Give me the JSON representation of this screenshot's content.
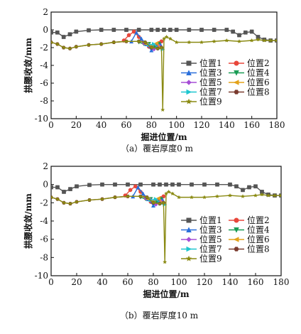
{
  "chart_data": [
    {
      "type": "line",
      "caption": "（a）覆岩厚度0 m",
      "xlabel": "掘进位置/m",
      "ylabel": "拱腰收敛/mm",
      "xlim": [
        0,
        180
      ],
      "ylim": [
        -10,
        2
      ],
      "xticks": [
        0,
        20,
        40,
        60,
        80,
        100,
        120,
        140,
        160,
        180
      ],
      "yticks": [
        2,
        0,
        -2,
        -4,
        -6,
        -8,
        -10
      ],
      "legend_placement": "right, inside plot",
      "series": [
        {
          "name": "位置1",
          "color": "#555555",
          "marker": "square",
          "x": [
            0,
            5,
            10,
            15,
            20,
            30,
            40,
            50,
            60,
            70,
            80,
            85,
            90,
            95,
            100,
            110,
            120,
            130,
            140,
            145,
            150,
            155,
            160,
            165,
            170,
            175,
            180
          ],
          "y": [
            -0.3,
            -0.3,
            -0.8,
            -0.5,
            -0.2,
            -0.05,
            0,
            0,
            0,
            0,
            0,
            0,
            0,
            0,
            0,
            0,
            0,
            0,
            0,
            -0.2,
            -0.6,
            -0.3,
            -0.2,
            -0.8,
            -1.1,
            -1.2,
            -1.2
          ]
        },
        {
          "name": "位置2",
          "color": "#e8473b",
          "marker": "circle",
          "x": [
            58,
            62,
            66,
            70,
            74,
            78,
            82,
            86,
            88
          ],
          "y": [
            -1.2,
            -0.6,
            -0.2,
            -0.8,
            -1.5,
            -1.9,
            -1.8,
            -1.5,
            -1.3
          ]
        },
        {
          "name": "位置3",
          "color": "#2a6fdb",
          "marker": "triangle-up",
          "x": [
            64,
            68,
            72,
            76,
            80,
            84,
            87
          ],
          "y": [
            -1.3,
            -0.3,
            -1.0,
            -1.6,
            -2.3,
            -1.9,
            -1.6
          ]
        },
        {
          "name": "位置4",
          "color": "#1a9c55",
          "marker": "triangle-down",
          "x": [
            70,
            74,
            78,
            82,
            86
          ],
          "y": [
            -1.4,
            -1.6,
            -1.6,
            -2.0,
            -1.6
          ]
        },
        {
          "name": "位置5",
          "color": "#a64fd6",
          "marker": "diamond",
          "x": [
            74,
            78,
            82,
            86
          ],
          "y": [
            -1.5,
            -1.7,
            -2.2,
            -1.8
          ]
        },
        {
          "name": "位置6",
          "color": "#e3a21a",
          "marker": "triangle-left",
          "x": [
            76,
            80,
            84,
            87
          ],
          "y": [
            -1.6,
            -1.8,
            -1.5,
            -2.0
          ]
        },
        {
          "name": "位置7",
          "color": "#1ec6cf",
          "marker": "triangle-right",
          "x": [
            78,
            82,
            86,
            89
          ],
          "y": [
            -1.7,
            -1.6,
            -2.1,
            -2.2
          ]
        },
        {
          "name": "位置8",
          "color": "#7a3b2e",
          "marker": "hexagon",
          "x": [
            0,
            5,
            10,
            15,
            20,
            30,
            40,
            50,
            60,
            70,
            75,
            80,
            85,
            88
          ],
          "y": [
            -1.4,
            -1.6,
            -2.0,
            -2.1,
            -1.9,
            -1.7,
            -1.6,
            -1.4,
            -1.3,
            -1.3,
            -1.4,
            -2.0,
            -2.1,
            -2.0
          ]
        },
        {
          "name": "位置9",
          "color": "#8a8a12",
          "marker": "star",
          "x": [
            0,
            5,
            10,
            15,
            20,
            30,
            40,
            50,
            60,
            70,
            75,
            80,
            85,
            88,
            89,
            90,
            92,
            95,
            100,
            110,
            120,
            130,
            140,
            150,
            160,
            165,
            170,
            175,
            180
          ],
          "y": [
            -1.4,
            -1.6,
            -2.0,
            -2.1,
            -1.9,
            -1.7,
            -1.6,
            -1.4,
            -1.3,
            -1.3,
            -1.4,
            -2.0,
            -2.1,
            -2.0,
            -9.0,
            -1.0,
            -0.8,
            -1.0,
            -1.4,
            -1.4,
            -1.4,
            -1.3,
            -1.2,
            -1.3,
            -1.2,
            -1.1,
            -1.2,
            -1.2,
            -1.2
          ]
        }
      ]
    },
    {
      "type": "line",
      "caption": "（b）覆岩厚度10 m",
      "xlabel": "掘进位置/m",
      "ylabel": "拱腰收敛/mm",
      "xlim": [
        0,
        180
      ],
      "ylim": [
        -10,
        2
      ],
      "xticks": [
        0,
        20,
        40,
        60,
        80,
        100,
        120,
        140,
        160,
        180
      ],
      "yticks": [
        2,
        0,
        -2,
        -4,
        -6,
        -8,
        -10
      ],
      "legend_placement": "right, inside plot",
      "series": [
        {
          "name": "位置1",
          "color": "#555555",
          "marker": "square",
          "x": [
            0,
            5,
            10,
            15,
            20,
            30,
            40,
            50,
            60,
            70,
            80,
            85,
            90,
            95,
            100,
            110,
            120,
            130,
            140,
            145,
            150,
            155,
            160,
            165,
            170,
            175,
            180
          ],
          "y": [
            -0.3,
            -0.3,
            -0.8,
            -0.5,
            -0.2,
            -0.05,
            0,
            0,
            0,
            0,
            0,
            0,
            0,
            0,
            0,
            0,
            0,
            0,
            0,
            -0.2,
            -0.6,
            -0.3,
            -0.2,
            -0.8,
            -1.1,
            -1.2,
            -1.2
          ]
        },
        {
          "name": "位置2",
          "color": "#e8473b",
          "marker": "circle",
          "x": [
            58,
            62,
            66,
            70,
            74,
            78,
            82,
            86,
            88
          ],
          "y": [
            -1.2,
            -0.6,
            -0.2,
            -0.8,
            -1.5,
            -1.9,
            -1.8,
            -1.5,
            -1.3
          ]
        },
        {
          "name": "位置3",
          "color": "#2a6fdb",
          "marker": "triangle-up",
          "x": [
            64,
            68,
            72,
            76,
            80,
            84,
            87
          ],
          "y": [
            -1.3,
            -0.3,
            -1.0,
            -1.6,
            -2.3,
            -1.9,
            -1.6
          ]
        },
        {
          "name": "位置4",
          "color": "#1a9c55",
          "marker": "triangle-down",
          "x": [
            70,
            74,
            78,
            82,
            86
          ],
          "y": [
            -1.4,
            -1.6,
            -1.6,
            -2.0,
            -1.6
          ]
        },
        {
          "name": "位置5",
          "color": "#a64fd6",
          "marker": "diamond",
          "x": [
            74,
            78,
            82,
            86
          ],
          "y": [
            -1.5,
            -1.7,
            -2.2,
            -1.8
          ]
        },
        {
          "name": "位置6",
          "color": "#e3a21a",
          "marker": "triangle-left",
          "x": [
            76,
            80,
            84,
            87
          ],
          "y": [
            -1.6,
            -1.8,
            -1.5,
            -2.0
          ]
        },
        {
          "name": "位置7",
          "color": "#1ec6cf",
          "marker": "triangle-right",
          "x": [
            78,
            82,
            86,
            89
          ],
          "y": [
            -1.7,
            -1.6,
            -2.1,
            -2.2
          ]
        },
        {
          "name": "位置8",
          "color": "#7a3b2e",
          "marker": "hexagon",
          "x": [
            0,
            5,
            10,
            15,
            20,
            30,
            40,
            50,
            60,
            70,
            75,
            80,
            85,
            88
          ],
          "y": [
            -1.4,
            -1.6,
            -2.0,
            -2.1,
            -1.9,
            -1.7,
            -1.6,
            -1.4,
            -1.3,
            -1.3,
            -1.4,
            -2.0,
            -2.1,
            -2.0
          ]
        },
        {
          "name": "位置9",
          "color": "#8a8a12",
          "marker": "star",
          "x": [
            0,
            5,
            10,
            15,
            20,
            30,
            40,
            50,
            60,
            70,
            75,
            80,
            85,
            88,
            89,
            90,
            92,
            95,
            100,
            110,
            120,
            130,
            140,
            150,
            160,
            165,
            170,
            175,
            180
          ],
          "y": [
            -1.4,
            -1.6,
            -2.0,
            -2.1,
            -1.9,
            -1.7,
            -1.6,
            -1.4,
            -1.3,
            -1.3,
            -1.4,
            -2.0,
            -2.1,
            -2.0,
            -8.5,
            -1.0,
            -0.8,
            -1.0,
            -1.4,
            -1.4,
            -1.4,
            -1.3,
            -1.2,
            -1.3,
            -1.2,
            -1.1,
            -1.2,
            -1.2,
            -1.2
          ]
        }
      ]
    }
  ]
}
